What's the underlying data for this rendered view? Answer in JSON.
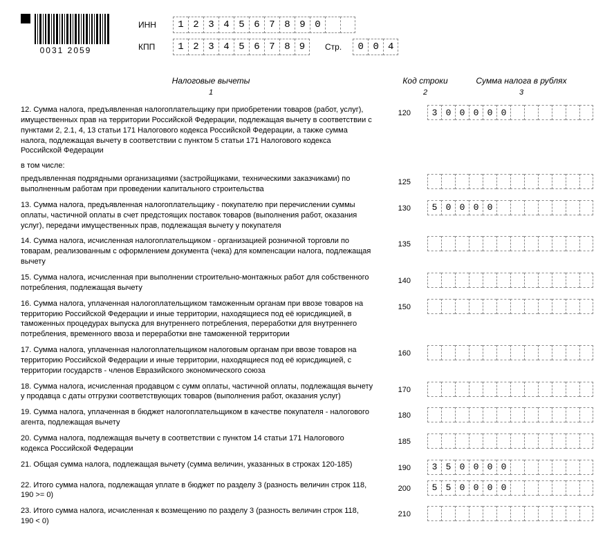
{
  "barcode_number": "0031 2059",
  "id": {
    "inn_label": "ИНН",
    "kpp_label": "КПП",
    "str_label": "Стр.",
    "inn": [
      "1",
      "2",
      "3",
      "4",
      "5",
      "6",
      "7",
      "8",
      "9",
      "0",
      "",
      ""
    ],
    "kpp": [
      "1",
      "2",
      "3",
      "4",
      "5",
      "6",
      "7",
      "8",
      "9"
    ],
    "str": [
      "0",
      "0",
      "4"
    ]
  },
  "headers": {
    "desc": "Налоговые вычеты",
    "code": "Код строки",
    "sum": "Сумма налога в рублях",
    "n1": "1",
    "n2": "2",
    "n3": "3"
  },
  "sum_cell_count": 12,
  "subhead": "в том числе:",
  "rows": [
    {
      "code": "120",
      "desc": "12. Сумма налога, предъявленная налогоплательщику при приобретении товаров (работ, услуг), имущественных прав на территории Российской Федерации, подлежащая вычету в соответствии с пунктами 2, 2.1, 4, 13 статьи 171 Налогового кодекса Российской Федерации, а также сумма налога, подлежащая вычету в соответствии с пунктом 5 статьи 171 Налогового кодекса Российской Федерации",
      "sum": [
        "3",
        "0",
        "0",
        "0",
        "0",
        "0",
        "",
        "",
        "",
        "",
        "",
        ""
      ]
    },
    {
      "code": "125",
      "desc": "предъявленная подрядными организациями (застройщиками, техническими заказчиками) по выполненным работам при проведении капитального строительства",
      "sum": [
        "",
        "",
        "",
        "",
        "",
        "",
        "",
        "",
        "",
        "",
        "",
        ""
      ]
    },
    {
      "code": "130",
      "desc": "13. Сумма налога, предъявленная налогоплательщику - покупателю при перечислении суммы оплаты, частичной оплаты в счет предстоящих поставок товаров (выполнения работ, оказания услуг), передачи имущественных прав, подлежащая вычету у покупателя",
      "sum": [
        "5",
        "0",
        "0",
        "0",
        "0",
        "",
        "",
        "",
        "",
        "",
        "",
        ""
      ]
    },
    {
      "code": "135",
      "desc": "14. Сумма налога, исчисленная налогоплательщиком - организацией розничной торговли по товарам, реализованным с оформлением документа (чека) для компенсации налога, подлежащая вычету",
      "sum": [
        "",
        "",
        "",
        "",
        "",
        "",
        "",
        "",
        "",
        "",
        "",
        ""
      ]
    },
    {
      "code": "140",
      "desc": "15. Сумма налога, исчисленная при выполнении строительно-монтажных работ для собственного потребления, подлежащая вычету",
      "sum": [
        "",
        "",
        "",
        "",
        "",
        "",
        "",
        "",
        "",
        "",
        "",
        ""
      ]
    },
    {
      "code": "150",
      "desc": "16. Сумма налога, уплаченная налогоплательщиком таможенным органам при ввозе товаров на территорию Российской Федерации и иные территории, находящиеся под её юрисдикцией, в таможенных процедурах выпуска для внутреннего потребления, переработки для внутреннего потребления, временного ввоза и переработки вне таможенной территории",
      "sum": [
        "",
        "",
        "",
        "",
        "",
        "",
        "",
        "",
        "",
        "",
        "",
        ""
      ]
    },
    {
      "code": "160",
      "desc": "17. Сумма налога, уплаченная налогоплательщиком налоговым органам при ввозе товаров на территорию Российской Федерации и иные территории, находящиеся под её юрисдикцией, с территории государств - членов Евразийского экономического союза",
      "sum": [
        "",
        "",
        "",
        "",
        "",
        "",
        "",
        "",
        "",
        "",
        "",
        ""
      ]
    },
    {
      "code": "170",
      "desc": "18. Сумма налога, исчисленная продавцом с сумм оплаты, частичной оплаты, подлежащая вычету у продавца с даты отгрузки соответствующих товаров (выполнения работ, оказания услуг)",
      "sum": [
        "",
        "",
        "",
        "",
        "",
        "",
        "",
        "",
        "",
        "",
        "",
        ""
      ]
    },
    {
      "code": "180",
      "desc": "19. Сумма налога, уплаченная в бюджет налогоплательщиком в качестве покупателя - налогового агента, подлежащая вычету",
      "sum": [
        "",
        "",
        "",
        "",
        "",
        "",
        "",
        "",
        "",
        "",
        "",
        ""
      ]
    },
    {
      "code": "185",
      "desc": "20. Сумма налога, подлежащая вычету в соответствии с пунктом 14 статьи 171 Налогового кодекса Российской Федерации",
      "sum": [
        "",
        "",
        "",
        "",
        "",
        "",
        "",
        "",
        "",
        "",
        "",
        ""
      ]
    },
    {
      "code": "190",
      "desc": "21. Общая сумма налога, подлежащая вычету (сумма величин, указанных в строках 120-185)",
      "sum": [
        "3",
        "5",
        "0",
        "0",
        "0",
        "0",
        "",
        "",
        "",
        "",
        "",
        ""
      ]
    },
    {
      "code": "200",
      "desc": "22. Итого сумма налога, подлежащая уплате в бюджет по разделу 3 (разность величин строк 118, 190 >= 0)",
      "sum": [
        "5",
        "5",
        "0",
        "0",
        "0",
        "0",
        "",
        "",
        "",
        "",
        "",
        ""
      ]
    },
    {
      "code": "210",
      "desc": "23. Итого сумма налога, исчисленная к возмещению по разделу 3 (разность величин строк 118, 190 < 0)",
      "sum": [
        "",
        "",
        "",
        "",
        "",
        "",
        "",
        "",
        "",
        "",
        "",
        ""
      ]
    }
  ]
}
